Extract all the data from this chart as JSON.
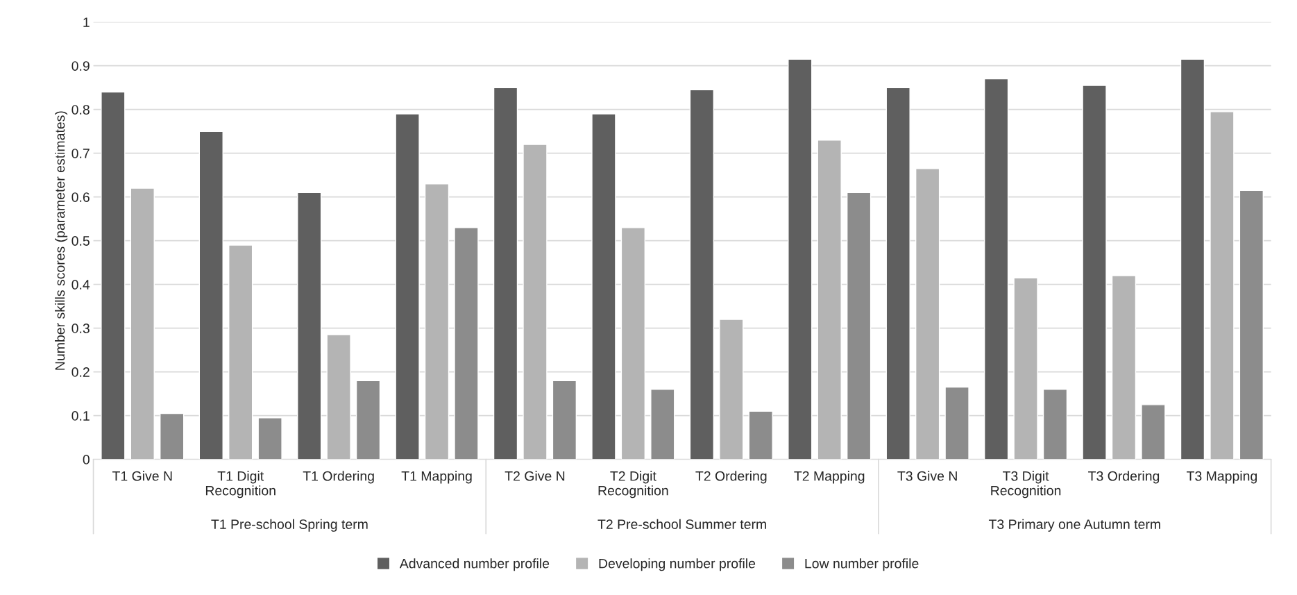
{
  "chart_data": {
    "type": "bar",
    "ylabel": "Number skills scores (parameter estimates)",
    "categories": [
      "T1 Give N",
      "T1 Digit Recognition",
      "T1 Ordering",
      "T1 Mapping",
      "T2 Give N",
      "T2 Digit Recognition",
      "T2 Ordering",
      "T2 Mapping",
      "T3 Give N",
      "T3 Digit Recognition",
      "T3 Ordering",
      "T3 Mapping"
    ],
    "series": [
      {
        "name": "Advanced number profile",
        "color": "#5f5f5f",
        "values": [
          0.84,
          0.75,
          0.61,
          0.79,
          0.85,
          0.79,
          0.845,
          0.915,
          0.85,
          0.87,
          0.855,
          0.915
        ]
      },
      {
        "name": "Developing number profile",
        "color": "#b4b4b4",
        "values": [
          0.62,
          0.49,
          0.285,
          0.63,
          0.72,
          0.53,
          0.32,
          0.73,
          0.665,
          0.415,
          0.42,
          0.795
        ]
      },
      {
        "name": "Low number profile",
        "color": "#8c8c8c",
        "values": [
          0.105,
          0.095,
          0.18,
          0.53,
          0.18,
          0.16,
          0.11,
          0.61,
          0.165,
          0.16,
          0.125,
          0.615
        ]
      }
    ],
    "annotations": [
      "T1 Pre-school Spring term",
      "T2 Pre-school Summer term",
      "T3 Primary one Autumn term"
    ],
    "ylim": [
      0,
      1
    ],
    "yticks": [
      0,
      0.1,
      0.2,
      0.3,
      0.4,
      0.5,
      0.6,
      0.7,
      0.8,
      0.9,
      1
    ],
    "grid": "y",
    "legend": "bottom"
  }
}
